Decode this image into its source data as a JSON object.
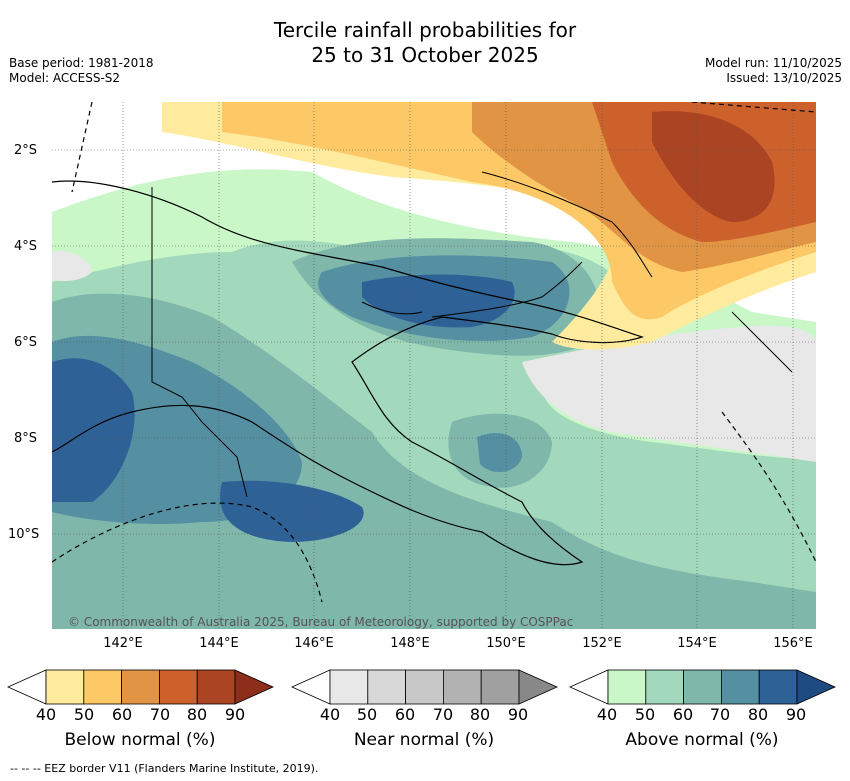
{
  "title": {
    "line1": "Tercile rainfall probabilities for",
    "line2": "25 to 31 October 2025"
  },
  "meta_left": {
    "base_period": "Base period: 1981-2018",
    "model": "Model: ACCESS-S2"
  },
  "meta_right": {
    "model_run": "Model run: 11/10/2025",
    "issued": "Issued: 13/10/2025"
  },
  "latitude_labels": [
    "2°S",
    "4°S",
    "6°S",
    "8°S",
    "10°S"
  ],
  "longitude_labels": [
    "142°E",
    "144°E",
    "146°E",
    "148°E",
    "150°E",
    "152°E",
    "154°E",
    "156°E"
  ],
  "copyright": "© Commonwealth of Australia 2025, Bureau of Meteorology, supported by COSPPac",
  "colorbars": [
    {
      "label": "Below normal (%)",
      "ticks": [
        "40",
        "50",
        "60",
        "70",
        "80",
        "90"
      ],
      "colors": [
        "#ffffff",
        "#ffeb9e",
        "#fdc866",
        "#e09444",
        "#cd612c",
        "#aa4422",
        "#8c2e1a"
      ]
    },
    {
      "label": "Near normal (%)",
      "ticks": [
        "40",
        "50",
        "60",
        "70",
        "80",
        "90"
      ],
      "colors": [
        "#ffffff",
        "#e8e8e8",
        "#d8d8d8",
        "#c8c8c8",
        "#b2b2b2",
        "#a0a0a0",
        "#888888"
      ]
    },
    {
      "label": "Above normal (%)",
      "ticks": [
        "40",
        "50",
        "60",
        "70",
        "80",
        "90"
      ],
      "colors": [
        "#ffffff",
        "#c9f7c8",
        "#a2d8bb",
        "#7fb7ab",
        "#558fa2",
        "#2e6296",
        "#1f4b83"
      ]
    }
  ],
  "footer": "--  --  -- EEZ border V11 (Flanders Marine Institute, 2019)."
}
